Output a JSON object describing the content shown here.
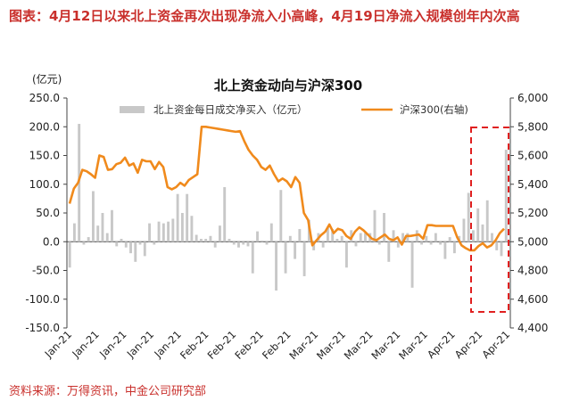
{
  "header": {
    "title": "图表：4月12日以来北上资金再次出现净流入小高峰，4月19日净流入规模创年内次高"
  },
  "source": "资料来源：万得资讯，中金公司研究部",
  "chart_data": {
    "type": "bar",
    "title": "北上资金动向与沪深300",
    "left_axis_unit": "(亿元)",
    "ylim": [
      -150,
      250
    ],
    "y_ticks": [
      "250.0",
      "200.0",
      "150.0",
      "100.0",
      "50.0",
      "0.0",
      "-50.0",
      "-100.0",
      "-150.0"
    ],
    "y2lim": [
      4400,
      6000
    ],
    "y2_ticks": [
      "6,000",
      "5,800",
      "5,600",
      "5,400",
      "5,200",
      "5,000",
      "4,800",
      "4,600",
      "4,400"
    ],
    "x_ticks": [
      "Jan-21",
      "Jan-21",
      "Jan-21",
      "Jan-21",
      "Jan-21",
      "Feb-21",
      "Feb-21",
      "Feb-21",
      "Feb-21",
      "Mar-21",
      "Mar-21",
      "Mar-21",
      "Mar-21",
      "Mar-21",
      "Apr-21",
      "Apr-21",
      "Apr-21"
    ],
    "series": [
      {
        "name": "北上资金每日成交净买入（亿元）",
        "axis": "left",
        "color": "#c8c8c8",
        "values": [
          -45,
          32,
          205,
          -5,
          8,
          88,
          28,
          50,
          15,
          55,
          -8,
          5,
          -10,
          -20,
          -35,
          -5,
          -25,
          32,
          -5,
          35,
          32,
          35,
          40,
          83,
          50,
          83,
          45,
          12,
          5,
          5,
          10,
          -10,
          28,
          95,
          5,
          -5,
          -10,
          -5,
          -8,
          -55,
          18,
          2,
          -5,
          32,
          -85,
          90,
          -55,
          10,
          -30,
          22,
          -60,
          38,
          -15,
          15,
          -10,
          25,
          22,
          5,
          10,
          -45,
          20,
          -8,
          15,
          15,
          15,
          55,
          -5,
          50,
          -35,
          20,
          -10,
          15,
          15,
          -80,
          20,
          -5,
          10,
          -5,
          15,
          -5,
          -30,
          8,
          -20,
          10,
          40,
          85,
          20,
          58,
          30,
          72,
          15,
          -15,
          -25,
          160
        ]
      },
      {
        "name": "沪深300(右轴)",
        "axis": "right",
        "color": "#f08a1c",
        "values": [
          5265,
          5370,
          5410,
          5500,
          5490,
          5470,
          5445,
          5600,
          5590,
          5500,
          5505,
          5540,
          5550,
          5585,
          5530,
          5545,
          5480,
          5570,
          5560,
          5560,
          5505,
          5555,
          5520,
          5380,
          5365,
          5380,
          5410,
          5390,
          5430,
          5450,
          5470,
          5800,
          5800,
          5795,
          5790,
          5785,
          5780,
          5775,
          5770,
          5765,
          5770,
          5700,
          5640,
          5600,
          5570,
          5520,
          5500,
          5530,
          5470,
          5420,
          5440,
          5420,
          5380,
          5450,
          5410,
          5200,
          5150,
          4975,
          5010,
          5045,
          5070,
          5120,
          5060,
          5090,
          5080,
          5040,
          5020,
          5070,
          5100,
          5080,
          5050,
          5020,
          5010,
          5030,
          5050,
          5020,
          5010,
          5030,
          4980,
          5040,
          5040,
          5045,
          5050,
          5020,
          5115,
          5115,
          5110,
          5110,
          5110,
          5110,
          5110,
          5030,
          4975,
          4955,
          4940
        ]
      }
    ],
    "right_series_extension": [
      4940,
      4970,
      4990,
      4960,
      4975,
      5010,
      5060,
      5090
    ],
    "highlight_box": {
      "color": "#e02020",
      "style": "dashed"
    }
  }
}
